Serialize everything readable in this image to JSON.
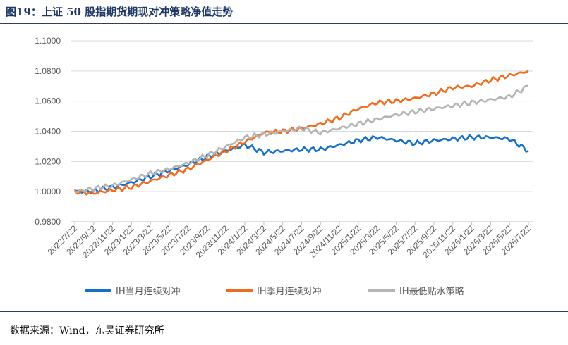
{
  "header": {
    "title": "图19：上证 50 股指期货期现对冲策略净值走势"
  },
  "footer": {
    "source": "数据来源：Wind，东吴证券研究所"
  },
  "chart_data": {
    "type": "line",
    "title": "",
    "xlabel": "",
    "ylabel": "",
    "ylim": [
      0.98,
      1.1
    ],
    "y_ticks": [
      "1.1000",
      "1.0800",
      "1.0600",
      "1.0400",
      "1.0200",
      "1.0000",
      "0.9800"
    ],
    "grid": "horizontal",
    "legend_position": "bottom",
    "x_tick_labels": [
      "2022/7/22",
      "2022/9/22",
      "2022/11/22",
      "2023/1/22",
      "2023/3/22",
      "2023/5/22",
      "2023/7/22",
      "2023/9/22",
      "2023/11/22",
      "2024/1/22",
      "2024/3/22",
      "2024/5/22",
      "2024/7/22",
      "2024/9/22",
      "2024/11/22",
      "2025/1/22",
      "2025/3/22",
      "2025/5/22",
      "2025/7/22",
      "2025/9/22",
      "2025/11/22",
      "2026/1/22",
      "2026/3/22",
      "2026/5/22",
      "2026/7/22"
    ],
    "series": [
      {
        "name": "IH当月连续对冲",
        "color": "#1570c8",
        "values": [
          1.0,
          1.0003,
          1.003,
          1.006,
          1.01,
          1.014,
          1.018,
          1.023,
          1.027,
          1.031,
          1.026,
          1.027,
          1.028,
          1.028,
          1.031,
          1.034,
          1.036,
          1.034,
          1.032,
          1.034,
          1.035,
          1.036,
          1.036,
          1.035,
          1.027
        ]
      },
      {
        "name": "IH季月连续对冲",
        "color": "#f26b1d",
        "values": [
          1.0,
          0.999,
          1.001,
          1.003,
          1.007,
          1.011,
          1.015,
          1.021,
          1.027,
          1.033,
          1.039,
          1.04,
          1.042,
          1.045,
          1.049,
          1.055,
          1.059,
          1.06,
          1.062,
          1.065,
          1.069,
          1.07,
          1.074,
          1.077,
          1.08
        ]
      },
      {
        "name": "IH最低贴水策略",
        "color": "#b4b4b4",
        "values": [
          1.0,
          1.002,
          1.004,
          1.008,
          1.012,
          1.015,
          1.019,
          1.024,
          1.03,
          1.036,
          1.038,
          1.04,
          1.042,
          1.039,
          1.042,
          1.045,
          1.048,
          1.051,
          1.053,
          1.055,
          1.057,
          1.059,
          1.061,
          1.063,
          1.07
        ]
      }
    ],
    "annotations": []
  }
}
